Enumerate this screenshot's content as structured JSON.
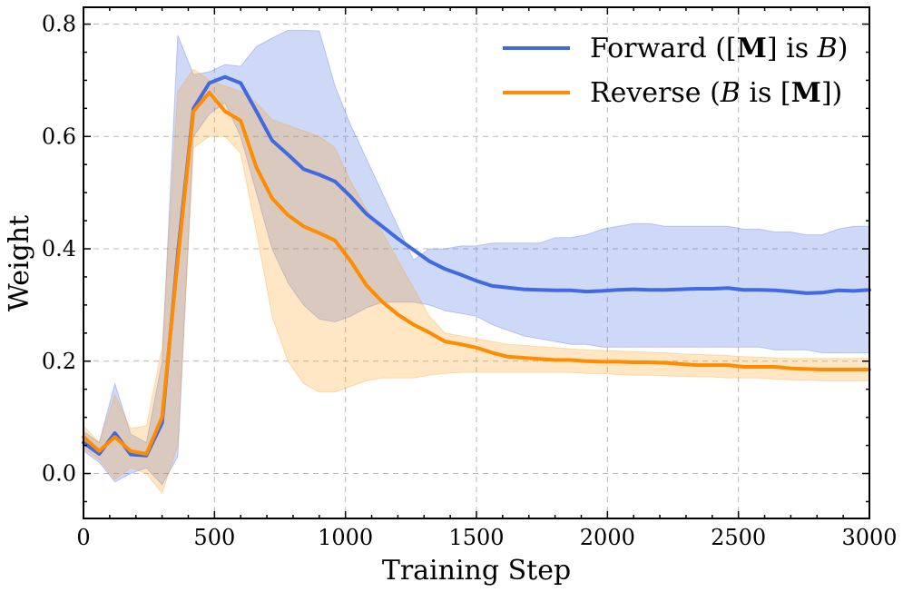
{
  "chart_data": {
    "type": "line",
    "xlabel": "Training Step",
    "ylabel": "Weight",
    "xlim": [
      0,
      3000
    ],
    "ylim": [
      -0.08,
      0.83
    ],
    "xticks": [
      0,
      500,
      1000,
      1500,
      2000,
      2500,
      3000
    ],
    "xtick_labels": [
      "0",
      "500",
      "1000",
      "1500",
      "2000",
      "2500",
      "3000"
    ],
    "yticks": [
      0.0,
      0.2,
      0.4,
      0.6,
      0.8
    ],
    "ytick_labels": [
      "0.0",
      "0.2",
      "0.4",
      "0.6",
      "0.8"
    ],
    "grid": true,
    "legend_position": "top-right",
    "x": [
      0,
      60,
      120,
      180,
      240,
      300,
      360,
      420,
      480,
      540,
      600,
      660,
      720,
      780,
      840,
      900,
      960,
      1020,
      1080,
      1140,
      1200,
      1260,
      1320,
      1380,
      1440,
      1500,
      1560,
      1620,
      1680,
      1740,
      1800,
      1860,
      1920,
      1980,
      2040,
      2100,
      2160,
      2220,
      2280,
      2340,
      2400,
      2460,
      2520,
      2580,
      2640,
      2700,
      2760,
      2820,
      2880,
      2940,
      3000
    ],
    "series": [
      {
        "name": "Forward",
        "legend_parts": [
          "Forward ([",
          "M",
          "] is ",
          "B",
          ")"
        ],
        "color": "#4169e1",
        "band_color": "#4169e1",
        "values": [
          0.055,
          0.035,
          0.072,
          0.034,
          0.032,
          0.09,
          0.39,
          0.65,
          0.695,
          0.706,
          0.695,
          0.645,
          0.593,
          0.568,
          0.542,
          0.532,
          0.52,
          0.493,
          0.462,
          0.44,
          0.418,
          0.398,
          0.378,
          0.364,
          0.354,
          0.343,
          0.334,
          0.331,
          0.328,
          0.327,
          0.326,
          0.326,
          0.324,
          0.325,
          0.327,
          0.328,
          0.327,
          0.327,
          0.328,
          0.329,
          0.329,
          0.33,
          0.327,
          0.327,
          0.326,
          0.324,
          0.321,
          0.322,
          0.326,
          0.325,
          0.327
        ],
        "upper": [
          0.075,
          0.055,
          0.16,
          0.07,
          0.055,
          0.2,
          0.78,
          0.71,
          0.715,
          0.728,
          0.725,
          0.76,
          0.775,
          0.789,
          0.789,
          0.788,
          0.69,
          0.62,
          0.56,
          0.5,
          0.44,
          0.38,
          0.4,
          0.4,
          0.405,
          0.405,
          0.41,
          0.41,
          0.41,
          0.41,
          0.42,
          0.42,
          0.425,
          0.435,
          0.44,
          0.445,
          0.445,
          0.44,
          0.44,
          0.44,
          0.44,
          0.44,
          0.435,
          0.435,
          0.43,
          0.43,
          0.425,
          0.425,
          0.435,
          0.44,
          0.44
        ],
        "lower": [
          0.04,
          0.02,
          -0.015,
          0.0,
          0.01,
          -0.02,
          0.03,
          0.6,
          0.64,
          0.66,
          0.6,
          0.5,
          0.4,
          0.34,
          0.3,
          0.275,
          0.27,
          0.28,
          0.295,
          0.305,
          0.305,
          0.305,
          0.3,
          0.29,
          0.285,
          0.28,
          0.265,
          0.255,
          0.245,
          0.24,
          0.235,
          0.23,
          0.23,
          0.225,
          0.225,
          0.225,
          0.225,
          0.225,
          0.225,
          0.225,
          0.225,
          0.225,
          0.225,
          0.225,
          0.22,
          0.22,
          0.22,
          0.215,
          0.215,
          0.215,
          0.215
        ]
      },
      {
        "name": "Reverse",
        "legend_parts": [
          "Reverse (",
          "B",
          " is [",
          "M",
          "])"
        ],
        "color": "#ff8c00",
        "band_color": "#ff9f1c",
        "values": [
          0.065,
          0.04,
          0.065,
          0.04,
          0.035,
          0.1,
          0.38,
          0.645,
          0.678,
          0.645,
          0.628,
          0.545,
          0.49,
          0.46,
          0.44,
          0.428,
          0.415,
          0.378,
          0.335,
          0.306,
          0.283,
          0.265,
          0.251,
          0.235,
          0.23,
          0.224,
          0.215,
          0.208,
          0.206,
          0.204,
          0.202,
          0.202,
          0.2,
          0.199,
          0.199,
          0.198,
          0.198,
          0.197,
          0.195,
          0.193,
          0.193,
          0.193,
          0.19,
          0.19,
          0.19,
          0.187,
          0.186,
          0.185,
          0.185,
          0.185,
          0.185
        ],
        "upper": [
          0.085,
          0.055,
          0.14,
          0.08,
          0.085,
          0.225,
          0.68,
          0.72,
          0.7,
          0.69,
          0.68,
          0.66,
          0.63,
          0.62,
          0.61,
          0.6,
          0.58,
          0.52,
          0.47,
          0.43,
          0.38,
          0.33,
          0.28,
          0.25,
          0.245,
          0.24,
          0.235,
          0.23,
          0.228,
          0.226,
          0.224,
          0.222,
          0.22,
          0.219,
          0.218,
          0.217,
          0.216,
          0.215,
          0.213,
          0.212,
          0.211,
          0.21,
          0.208,
          0.207,
          0.206,
          0.205,
          0.205,
          0.205,
          0.205,
          0.205,
          0.205
        ],
        "lower": [
          0.045,
          0.025,
          -0.01,
          0.01,
          0.0,
          -0.035,
          0.05,
          0.58,
          0.6,
          0.6,
          0.57,
          0.43,
          0.28,
          0.2,
          0.16,
          0.145,
          0.145,
          0.155,
          0.165,
          0.17,
          0.17,
          0.17,
          0.175,
          0.178,
          0.18,
          0.18,
          0.18,
          0.18,
          0.18,
          0.18,
          0.18,
          0.18,
          0.178,
          0.178,
          0.176,
          0.175,
          0.175,
          0.174,
          0.173,
          0.172,
          0.172,
          0.17,
          0.17,
          0.17,
          0.168,
          0.167,
          0.166,
          0.165,
          0.165,
          0.165,
          0.165
        ]
      }
    ]
  }
}
